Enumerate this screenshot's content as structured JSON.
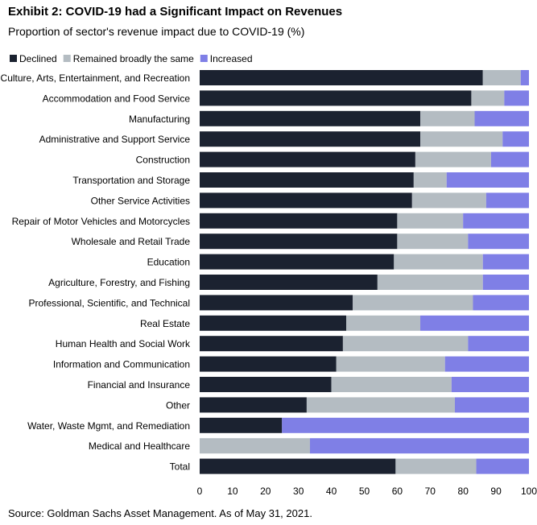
{
  "title": "Exhibit 2: COVID-19 had a Significant Impact on Revenues",
  "subtitle": "Proportion of sector's revenue impact due to COVID-19 (%)",
  "source": "Source: Goldman Sachs Asset Management. As of May 31, 2021.",
  "colors": {
    "declined": "#1b2230",
    "same": "#b4bcc2",
    "increased": "#7f7fe6"
  },
  "chart_data": {
    "type": "bar",
    "orientation": "horizontal",
    "stacked": true,
    "categories": [
      "Culture, Arts, Entertainment, and Recreation",
      "Accommodation and Food Service",
      "Manufacturing",
      "Administrative and Support Service",
      "Construction",
      "Transportation and Storage",
      "Other Service Activities",
      "Repair of Motor Vehicles and Motorcycles",
      "Wholesale and Retail Trade",
      "Education",
      "Agriculture, Forestry, and Fishing",
      "Professional, Scientific, and Technical",
      "Real Estate",
      "Human Health and Social Work",
      "Information and Communication",
      "Financial and Insurance",
      "Other",
      "Water, Waste Mgmt, and Remediation",
      "Medical and Healthcare",
      "Total"
    ],
    "series": [
      {
        "name": "Declined",
        "values": [
          86,
          82.5,
          67,
          67,
          65.5,
          65,
          64.5,
          60,
          60,
          59,
          54,
          46.5,
          44.5,
          43.5,
          41.5,
          40,
          32.5,
          25,
          0,
          59.5
        ]
      },
      {
        "name": "Remained broadly the same",
        "values": [
          11.5,
          10,
          16.5,
          25,
          23,
          10,
          22.5,
          20,
          21.5,
          27,
          32,
          36.5,
          22.5,
          38,
          33,
          36.5,
          45,
          0,
          33.5,
          24.5
        ]
      },
      {
        "name": "Increased",
        "values": [
          2.5,
          7.5,
          16.5,
          8,
          11.5,
          25,
          13,
          20,
          18.5,
          14,
          14,
          17,
          33,
          18.5,
          25.5,
          23.5,
          22.5,
          75,
          66.5,
          16
        ]
      }
    ],
    "xlim": [
      0,
      100
    ],
    "xticks": [
      0,
      10,
      20,
      30,
      40,
      50,
      60,
      70,
      80,
      90,
      100
    ],
    "legend": "top-left",
    "grid": false
  }
}
